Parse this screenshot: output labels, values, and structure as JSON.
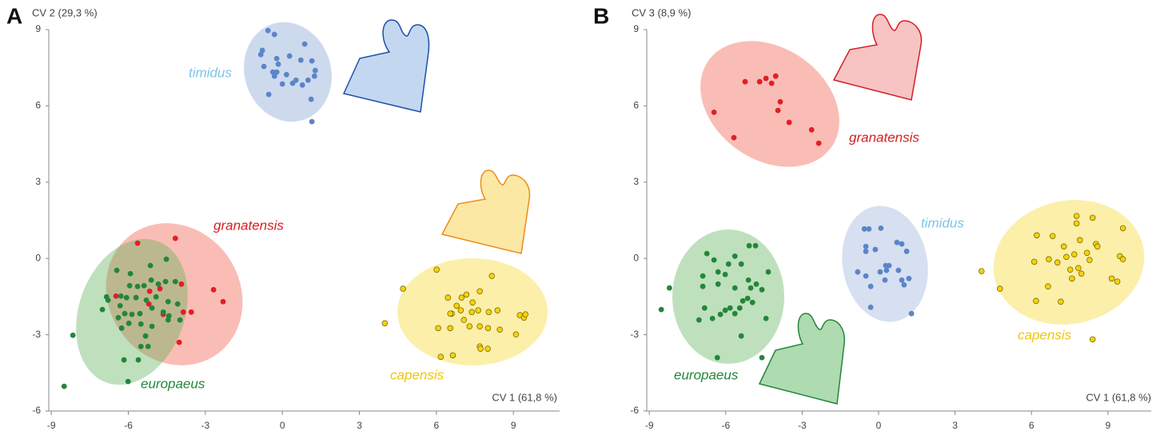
{
  "chart_data": [
    {
      "type": "scatter",
      "panel_label": "A",
      "xlabel": "CV 1 (61,8 %)",
      "ylabel": "CV 2 (29,3 %)",
      "xlim": [
        -9.1,
        10.8
      ],
      "ylim": [
        -6,
        9
      ],
      "xticks": [
        -9,
        -6,
        -3,
        0,
        3,
        6,
        9
      ],
      "yticks": [
        -6,
        -3,
        0,
        3,
        6,
        9
      ],
      "series": [
        {
          "name": "timidus",
          "color": "#5b85c8",
          "x": [
            -0.56,
            -0.31,
            -0.78,
            -0.22,
            -0.84,
            -0.16,
            0.28,
            0.72,
            0.87,
            1.15,
            -0.37,
            -0.22,
            -0.31,
            -0.72,
            0.16,
            0.4,
            0.53,
            0.78,
            1.28,
            1.25,
            1.0,
            0,
            -0.53,
            1.12,
            1.15
          ],
          "y": [
            8.96,
            8.81,
            8.18,
            7.86,
            8.02,
            7.64,
            7.96,
            7.8,
            8.43,
            7.77,
            7.33,
            7.33,
            7.17,
            7.55,
            7.23,
            6.89,
            7.01,
            6.82,
            7.39,
            7.17,
            7.01,
            6.86,
            6.45,
            6.26,
            5.38
          ]
        },
        {
          "name": "granatensis",
          "color": "#e31e24",
          "x": [
            -5.64,
            -4.17,
            -6.48,
            -5.17,
            -3.93,
            -5.2,
            -4.64,
            -3.86,
            -3.55,
            -2.68,
            -2.31,
            -4.02,
            -4.77
          ],
          "y": [
            0.6,
            0.79,
            -1.48,
            -1.29,
            -1.01,
            -1.79,
            -2.2,
            -2.11,
            -2.11,
            -1.23,
            -1.7,
            -3.3,
            -1.19
          ]
        },
        {
          "name": "europaeus",
          "color": "#23863a",
          "x": [
            -6.45,
            -5.92,
            -5.14,
            -4.52,
            -5.11,
            -5.95,
            -5.64,
            -5.39,
            -4.83,
            -4.55,
            -4.17,
            -6.85,
            -6.79,
            -6.29,
            -6.07,
            -5.7,
            -5.3,
            -4.92,
            -4.45,
            -4.08,
            -7.01,
            -6.32,
            -6.14,
            -5.86,
            -5.55,
            -5.08,
            -4.64,
            -4.42,
            -3.99,
            -6.39,
            -5.98,
            -5.51,
            -5.08,
            -4.45,
            -5.51,
            -5.23,
            -6.26,
            -5.33,
            -6.17,
            -5.61,
            -6.01,
            -8.16,
            -8.5
          ],
          "y": [
            -0.47,
            -0.6,
            -0.28,
            -0.03,
            -0.85,
            -1.07,
            -1.1,
            -1.07,
            -1.01,
            -0.91,
            -0.91,
            -1.51,
            -1.64,
            -1.48,
            -1.54,
            -1.54,
            -1.64,
            -1.51,
            -1.7,
            -1.79,
            -2.01,
            -1.86,
            -2.17,
            -2.2,
            -2.17,
            -1.95,
            -2.11,
            -2.26,
            -2.42,
            -2.33,
            -2.55,
            -2.58,
            -2.67,
            -2.42,
            -3.46,
            -3.46,
            -2.74,
            -3.05,
            -3.99,
            -3.99,
            -4.84,
            -3.02,
            -5.03
          ]
        },
        {
          "name": "capensis",
          "color": "#f5d20a",
          "x": [
            3.99,
            4.7,
            6.01,
            6.45,
            6.6,
            6.79,
            6.98,
            7.17,
            7.41,
            7.69,
            8.16,
            6.54,
            6.95,
            7.38,
            7.63,
            8.38,
            9.25,
            9.41,
            9.47,
            6.07,
            6.54,
            7.29,
            7.69,
            8.01,
            8.47,
            9.1,
            7.69,
            8.0,
            7.72,
            6.17,
            6.64,
            7.07,
            8.04
          ],
          "y": [
            -2.55,
            -1.19,
            -0.44,
            -1.54,
            -2.17,
            -1.86,
            -1.54,
            -1.42,
            -1.73,
            -1.29,
            -0.69,
            -2.17,
            -2.04,
            -2.11,
            -2.04,
            -2.04,
            -2.23,
            -2.33,
            -2.2,
            -2.74,
            -2.74,
            -2.67,
            -2.67,
            -2.74,
            -2.8,
            -2.99,
            -3.46,
            -3.55,
            -3.55,
            -3.87,
            -3.81,
            -2.42,
            -2.11
          ]
        }
      ]
    },
    {
      "type": "scatter",
      "panel_label": "B",
      "xlabel": "CV 1 (61,8 %)",
      "ylabel": "CV 3 (8,9 %)",
      "xlim": [
        -9.1,
        10.7
      ],
      "ylim": [
        -6,
        9
      ],
      "xticks": [
        -9,
        -6,
        -3,
        0,
        3,
        6,
        9
      ],
      "yticks": [
        -6,
        -3,
        0,
        3,
        6,
        9
      ],
      "series": [
        {
          "name": "granatensis",
          "color": "#e31e24",
          "x": [
            -6.46,
            -5.68,
            -5.24,
            -4.67,
            -4.42,
            -4.2,
            -4.04,
            -3.86,
            -3.95,
            -3.51,
            -2.63,
            -2.35
          ],
          "y": [
            5.75,
            4.75,
            6.95,
            6.95,
            7.08,
            6.89,
            7.17,
            6.16,
            5.82,
            5.35,
            5.06,
            4.53
          ]
        },
        {
          "name": "timidus",
          "color": "#5b85c8",
          "x": [
            -0.56,
            -0.38,
            0.09,
            -0.5,
            -0.5,
            -0.13,
            0.72,
            0.91,
            1.1,
            -0.82,
            -0.5,
            -0.31,
            0.28,
            0.41,
            0.31,
            0.78,
            0.25,
            0.91,
            1.19,
            1.0,
            -0.31,
            1.29,
            0.06
          ],
          "y": [
            1.16,
            1.16,
            1.19,
            0.47,
            0.28,
            0.35,
            0.63,
            0.57,
            0.28,
            -0.53,
            -0.69,
            -1.1,
            -0.28,
            -0.28,
            -0.47,
            -0.47,
            -0.85,
            -0.85,
            -0.79,
            -1.04,
            -1.92,
            -2.17,
            -0.53
          ]
        },
        {
          "name": "capensis",
          "color": "#f5d20a",
          "x": [
            4.04,
            4.76,
            6.21,
            6.83,
            7.77,
            7.77,
            8.4,
            9.59,
            6.11,
            6.68,
            7.02,
            7.37,
            7.68,
            8.18,
            8.53,
            6.18,
            7.15,
            6.65,
            7.52,
            7.84,
            7.96,
            7.59,
            8.28,
            9.15,
            9.37,
            9.47,
            9.59,
            7.27,
            7.9,
            8.4,
            8.59
          ],
          "y": [
            -0.5,
            -1.19,
            0.91,
            0.88,
            1.38,
            1.67,
            1.6,
            1.19,
            -0.13,
            -0.03,
            -0.16,
            0.06,
            0.16,
            0.22,
            0.57,
            -1.67,
            -1.7,
            -1.1,
            -0.44,
            -0.38,
            -0.6,
            -0.79,
            -0.06,
            -0.79,
            -0.91,
            0.09,
            -0.03,
            0.47,
            0.72,
            -3.18,
            0.47
          ]
        },
        {
          "name": "europaeus",
          "color": "#23863a",
          "x": [
            -8.53,
            -8.21,
            -6.74,
            -6.46,
            -5.89,
            -5.39,
            -5.08,
            -4.83,
            -5.64,
            -6.9,
            -6.3,
            -6.02,
            -4.33,
            -6.9,
            -6.3,
            -5.64,
            -5.02,
            -4.58,
            -6.83,
            -6.02,
            -5.83,
            -5.45,
            -5.33,
            -5.14,
            -4.95,
            -5.64,
            -6.21,
            -7.05,
            -6.52,
            -5.39,
            -4.42,
            -6.33,
            -4.58,
            -5.11,
            -4.8
          ],
          "y": [
            -2.01,
            -1.16,
            0.19,
            -0.06,
            -0.22,
            -0.22,
            0.5,
            0.5,
            0.09,
            -0.69,
            -0.53,
            -0.63,
            -0.53,
            -1.1,
            -1.01,
            -1.16,
            -1.16,
            -1.23,
            -1.95,
            -2.04,
            -1.95,
            -1.95,
            -1.67,
            -1.57,
            -1.73,
            -2.17,
            -2.2,
            -2.42,
            -2.36,
            -3.05,
            -2.36,
            -3.9,
            -3.9,
            -0.85,
            -1.01
          ]
        }
      ]
    }
  ]
}
